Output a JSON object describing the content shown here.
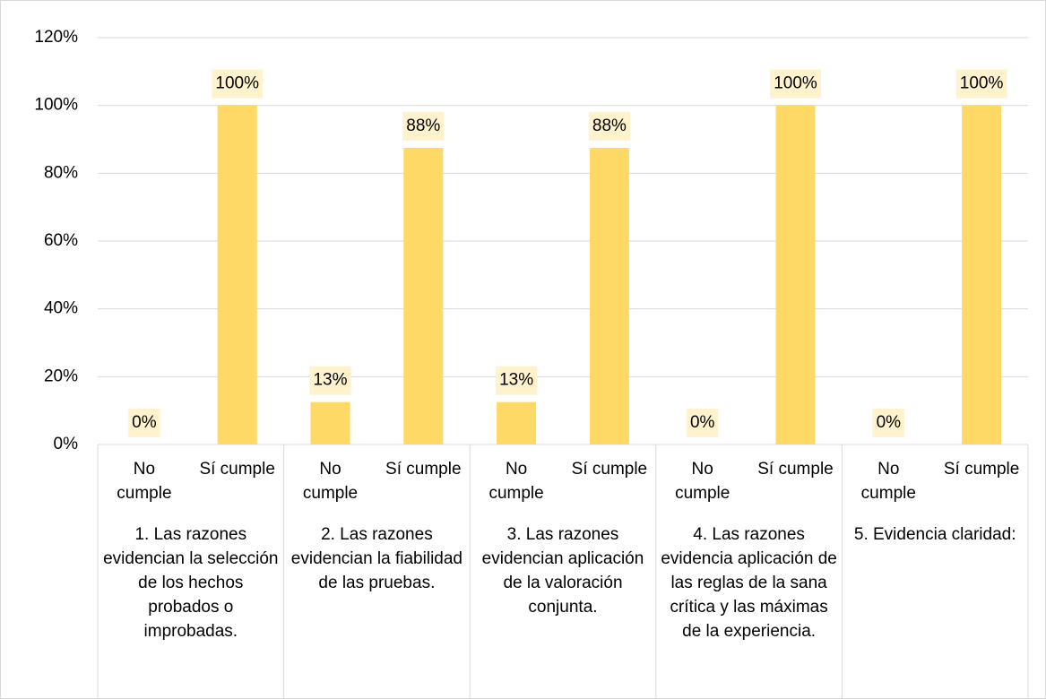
{
  "chart_data": {
    "type": "bar",
    "categories": [
      "No cumple",
      "Sí cumple",
      "No cumple",
      "Sí cumple",
      "No cumple",
      "Sí cumple",
      "No cumple",
      "Sí cumple",
      "No cumple",
      "Sí cumple"
    ],
    "groups": [
      "1. Las razones evidencian la selección de los hechos probados o improbadas.",
      "2. Las razones evidencian la fiabilidad de las pruebas.",
      "3. Las razones evidencian aplicación de la valoración conjunta.",
      "4. Las razones evidencia aplicación de las reglas de la sana crítica y las máximas de la experiencia.",
      "5. Evidencia claridad:"
    ],
    "values": [
      0,
      100,
      12.5,
      87.5,
      12.5,
      87.5,
      0,
      100,
      0,
      100
    ],
    "value_labels": [
      "0%",
      "100%",
      "13%",
      "88%",
      "13%",
      "88%",
      "0%",
      "100%",
      "0%",
      "100%"
    ],
    "color": "#ffd966",
    "label_background": "#fff2cc",
    "ylim": [
      0,
      120
    ],
    "yticks": [
      {
        "value": 0,
        "label": "0%"
      },
      {
        "value": 20,
        "label": "20%"
      },
      {
        "value": 40,
        "label": "40%"
      },
      {
        "value": 60,
        "label": "60%"
      },
      {
        "value": 80,
        "label": "80%"
      },
      {
        "value": 100,
        "label": "100%"
      },
      {
        "value": 120,
        "label": "120%"
      }
    ],
    "grid": true
  }
}
